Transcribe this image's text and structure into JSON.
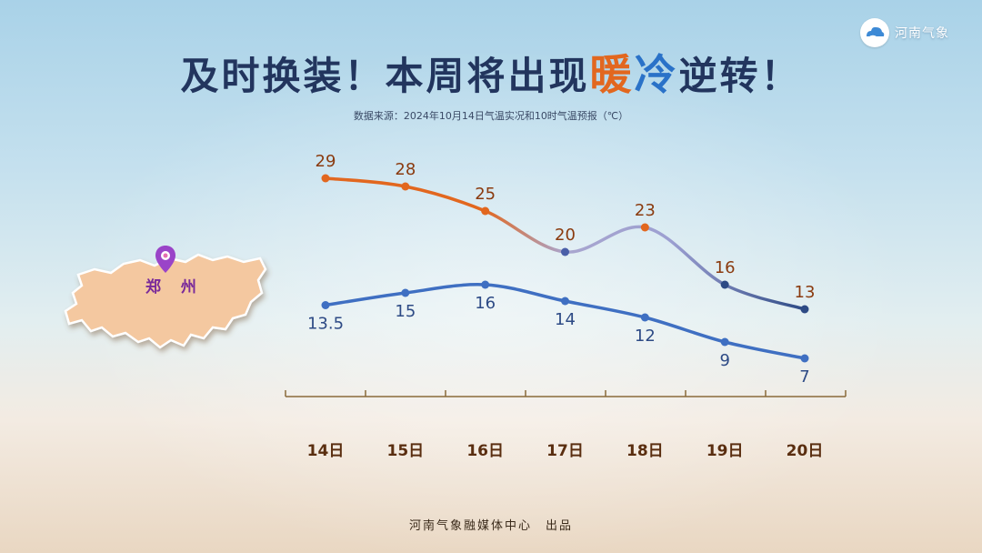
{
  "brand": {
    "name": "河南气象",
    "logo_icon": "weather-cloud-logo-icon"
  },
  "header": {
    "title_part1": "及时换装！本周将出现",
    "title_warm": "暖",
    "title_cold": "冷",
    "title_part2": "逆转！",
    "source": "数据来源：2024年10月14日气温实况和10时气温预报（℃）"
  },
  "map": {
    "city": "郑 州",
    "pin_icon": "location-pin-icon",
    "colors": {
      "region": "#f4c8a0",
      "pin": "#9a44c8"
    }
  },
  "chart_data": {
    "type": "line",
    "categories": [
      "14日",
      "15日",
      "16日",
      "17日",
      "18日",
      "19日",
      "20日"
    ],
    "series": [
      {
        "values": [
          29,
          28,
          25,
          20,
          23,
          16,
          13
        ],
        "labels": [
          "29",
          "28",
          "25",
          "20",
          "23",
          "16",
          "13"
        ],
        "color": "#e2671f"
      },
      {
        "values": [
          13.5,
          15,
          16,
          14,
          12,
          9,
          7
        ],
        "labels": [
          "13.5",
          "15",
          "16",
          "14",
          "12",
          "9",
          "7"
        ],
        "color": "#3f6fc2"
      }
    ],
    "ylim": [
      5,
      31
    ],
    "grid": false,
    "legend": "none"
  },
  "footer": {
    "credit": "河南气象融媒体中心　出品"
  }
}
